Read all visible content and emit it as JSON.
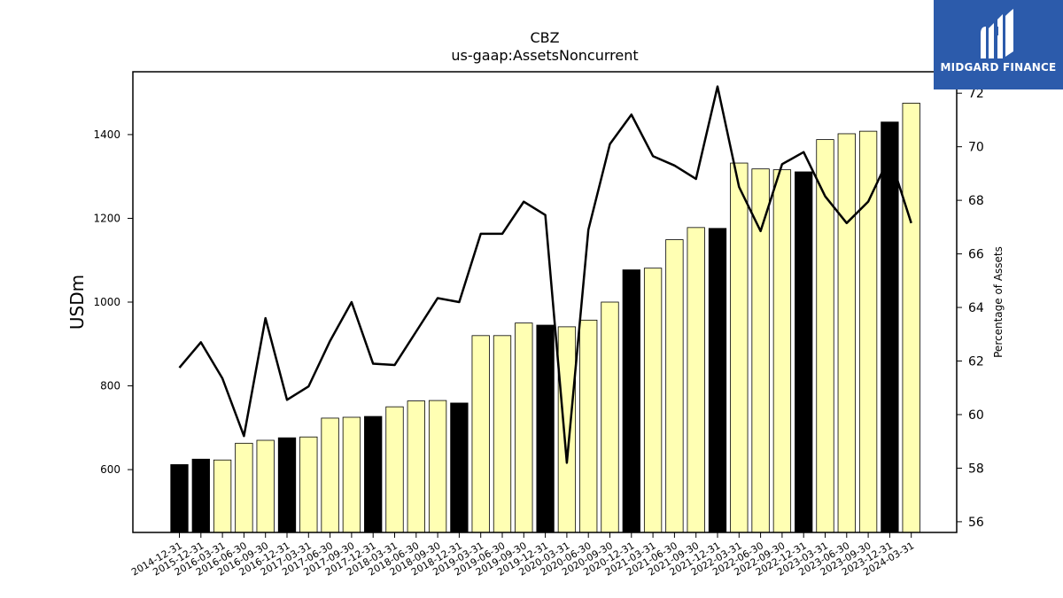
{
  "chart_data": {
    "type": "bar",
    "title": "CBZ",
    "subtitle": "us-gaap:AssetsNoncurrent",
    "ylabel": "USDm",
    "y2label": "Percentage of Assets",
    "ylim": [
      450,
      1550
    ],
    "y2lim": [
      55.6,
      72.8
    ],
    "yticks": [
      600,
      800,
      1000,
      1200,
      1400
    ],
    "y2ticks": [
      56,
      58,
      60,
      62,
      64,
      66,
      68,
      70,
      72
    ],
    "grid": false,
    "categories": [
      "2014-12-31",
      "2015-12-31",
      "2016-03-31",
      "2016-06-30",
      "2016-09-30",
      "2016-12-31",
      "2017-03-31",
      "2017-06-30",
      "2017-09-30",
      "2017-12-31",
      "2018-03-31",
      "2018-06-30",
      "2018-09-30",
      "2018-12-31",
      "2019-03-31",
      "2019-06-30",
      "2019-09-30",
      "2019-12-31",
      "2020-03-31",
      "2020-06-30",
      "2020-09-30",
      "2020-12-31",
      "2021-03-31",
      "2021-06-30",
      "2021-09-30",
      "2021-12-31",
      "2022-03-31",
      "2022-06-30",
      "2022-09-30",
      "2022-12-31",
      "2023-03-31",
      "2023-06-30",
      "2023-09-30",
      "2023-12-31",
      "2024-03-31"
    ],
    "series": [
      {
        "type": "bar",
        "values": [
          612,
          625,
          623,
          663,
          670,
          676,
          678,
          723,
          725,
          727,
          750,
          764,
          765,
          759,
          920,
          920,
          950,
          945,
          941,
          957,
          1000,
          1077,
          1081,
          1149,
          1178,
          1176,
          1332,
          1318,
          1316,
          1311,
          1388,
          1402,
          1408,
          1430,
          1475
        ],
        "colors": [
          "#000000",
          "#000000",
          "#ffffb3",
          "#ffffb3",
          "#ffffb3",
          "#000000",
          "#ffffb3",
          "#ffffb3",
          "#ffffb3",
          "#000000",
          "#ffffb3",
          "#ffffb3",
          "#ffffb3",
          "#000000",
          "#ffffb3",
          "#ffffb3",
          "#ffffb3",
          "#000000",
          "#ffffb3",
          "#ffffb3",
          "#ffffb3",
          "#000000",
          "#ffffb3",
          "#ffffb3",
          "#ffffb3",
          "#000000",
          "#ffffb3",
          "#ffffb3",
          "#ffffb3",
          "#000000",
          "#ffffb3",
          "#ffffb3",
          "#ffffb3",
          "#000000",
          "#ffffb3"
        ]
      },
      {
        "type": "line",
        "axis": "right",
        "color": "#000000",
        "values": [
          61.75,
          62.7,
          61.35,
          59.2,
          63.6,
          60.55,
          61.05,
          62.75,
          64.2,
          61.9,
          61.85,
          63.1,
          64.35,
          64.2,
          66.75,
          66.75,
          67.95,
          67.45,
          58.2,
          66.9,
          70.1,
          71.2,
          69.65,
          69.3,
          68.8,
          72.25,
          68.5,
          66.85,
          69.35,
          69.8,
          68.15,
          67.15,
          67.95,
          69.65,
          67.15
        ]
      }
    ]
  },
  "logo": {
    "text": "MIDGARD FINANCE",
    "bg_color": "#2c5bab"
  }
}
